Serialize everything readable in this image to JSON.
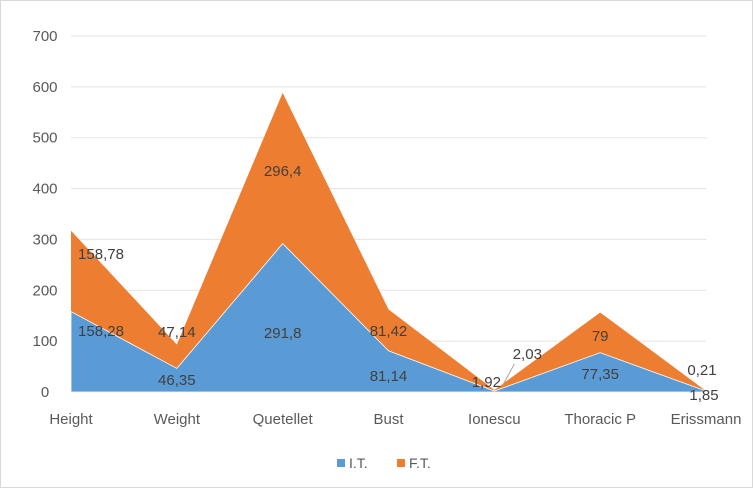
{
  "chart_data": {
    "type": "area",
    "stacked": true,
    "categories": [
      "Height",
      "Weight",
      "Quetellet",
      "Bust",
      "Ionescu",
      "Thoracic P",
      "Erissmann"
    ],
    "series": [
      {
        "name": "I.T.",
        "color": "#5b9bd5",
        "values": [
          158.28,
          46.35,
          291.8,
          81.14,
          1.92,
          77.35,
          1.85
        ],
        "labels": [
          "158,28",
          "46,35",
          "291,8",
          "81,14",
          "1,92",
          "77,35",
          "1,85"
        ]
      },
      {
        "name": "F.T.",
        "color": "#ed7d31",
        "values": [
          158.78,
          47.14,
          296.4,
          81.42,
          2.03,
          79,
          0.21
        ],
        "labels": [
          "158,78",
          "47,14",
          "296,4",
          "81,42",
          "2,03",
          "79",
          "0,21"
        ]
      }
    ],
    "ylim": [
      0,
      700
    ],
    "yticks": [
      "0",
      "100",
      "200",
      "300",
      "400",
      "500",
      "600",
      "700"
    ],
    "grid": true,
    "legend_position": "bottom"
  }
}
